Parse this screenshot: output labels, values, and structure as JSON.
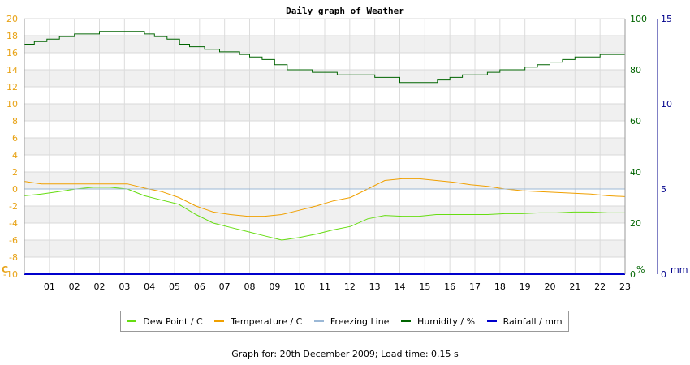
{
  "chart_data": {
    "type": "line",
    "title": "Daily graph of Weather",
    "x_tick_labels": [
      "01",
      "02",
      "02",
      "03",
      "04",
      "05",
      "06",
      "07",
      "08",
      "09",
      "10",
      "11",
      "12",
      "13",
      "14",
      "15",
      "16",
      "17",
      "18",
      "19",
      "20",
      "21",
      "22",
      "23"
    ],
    "axes": {
      "left": {
        "label": "C",
        "ylim": [
          -10,
          20
        ],
        "ticks": [
          20,
          18,
          16,
          14,
          12,
          10,
          8,
          6,
          4,
          2,
          0,
          -2,
          -4,
          -6,
          -8,
          -10
        ],
        "color": "#e8a317"
      },
      "right1": {
        "label": "%",
        "ylim": [
          0,
          100
        ],
        "ticks": [
          100,
          80,
          60,
          40,
          20,
          0
        ],
        "color": "#006400"
      },
      "right2": {
        "label": "mm",
        "ylim": [
          0,
          15
        ],
        "ticks": [
          15,
          10,
          5,
          0
        ],
        "color": "#00008b"
      }
    },
    "x_range_hours": [
      0,
      24
    ],
    "grid": true,
    "series": [
      {
        "name": "Dew Point / C",
        "color": "#66dd11",
        "axis": "left",
        "points": [
          [
            0,
            -0.8
          ],
          [
            1,
            -0.6
          ],
          [
            2,
            -0.3
          ],
          [
            3,
            0
          ],
          [
            4,
            0.2
          ],
          [
            5,
            0.2
          ],
          [
            6,
            0
          ],
          [
            7,
            -0.8
          ],
          [
            8,
            -1.3
          ],
          [
            9,
            -1.8
          ],
          [
            10,
            -3
          ],
          [
            11,
            -4
          ],
          [
            12,
            -4.5
          ],
          [
            13,
            -5
          ],
          [
            14,
            -5.5
          ],
          [
            15,
            -6
          ],
          [
            16,
            -5.7
          ],
          [
            17,
            -5.3
          ],
          [
            18,
            -4.8
          ],
          [
            19,
            -4.4
          ],
          [
            20,
            -3.5
          ],
          [
            21,
            -3.1
          ],
          [
            22,
            -3.2
          ],
          [
            23,
            -3.2
          ],
          [
            24,
            -3
          ],
          [
            25,
            -3
          ],
          [
            26,
            -3
          ],
          [
            27,
            -3
          ],
          [
            28,
            -2.9
          ],
          [
            29,
            -2.9
          ],
          [
            30,
            -2.8
          ],
          [
            31,
            -2.8
          ],
          [
            32,
            -2.7
          ],
          [
            33,
            -2.7
          ],
          [
            34,
            -2.8
          ],
          [
            35,
            -2.8
          ]
        ]
      },
      {
        "name": "Temperature / C",
        "color": "#f0a000",
        "axis": "left",
        "points": [
          [
            0,
            0.9
          ],
          [
            1,
            0.6
          ],
          [
            2,
            0.6
          ],
          [
            3,
            0.6
          ],
          [
            4,
            0.6
          ],
          [
            5,
            0.6
          ],
          [
            6,
            0.6
          ],
          [
            7,
            0.1
          ],
          [
            8,
            -0.3
          ],
          [
            9,
            -1
          ],
          [
            10,
            -2
          ],
          [
            11,
            -2.7
          ],
          [
            12,
            -3
          ],
          [
            13,
            -3.2
          ],
          [
            14,
            -3.2
          ],
          [
            15,
            -3
          ],
          [
            16,
            -2.5
          ],
          [
            17,
            -2
          ],
          [
            18,
            -1.4
          ],
          [
            19,
            -1
          ],
          [
            20,
            0
          ],
          [
            21,
            1
          ],
          [
            22,
            1.2
          ],
          [
            23,
            1.2
          ],
          [
            24,
            1
          ],
          [
            25,
            0.8
          ],
          [
            26,
            0.5
          ],
          [
            27,
            0.3
          ],
          [
            28,
            0
          ],
          [
            29,
            -0.2
          ],
          [
            30,
            -0.3
          ],
          [
            31,
            -0.4
          ],
          [
            32,
            -0.5
          ],
          [
            33,
            -0.6
          ],
          [
            34,
            -0.8
          ],
          [
            35,
            -0.9
          ]
        ]
      },
      {
        "name": "Freezing Line",
        "color": "#9bb8d6",
        "axis": "left",
        "points": [
          [
            0,
            0
          ],
          [
            24,
            0
          ]
        ]
      },
      {
        "name": "Humidity / %",
        "color": "#006400",
        "axis": "right1",
        "points": [
          [
            0,
            90
          ],
          [
            0.4,
            91
          ],
          [
            0.9,
            92
          ],
          [
            1.4,
            93
          ],
          [
            2,
            94
          ],
          [
            3,
            95
          ],
          [
            4,
            95
          ],
          [
            4.8,
            94
          ],
          [
            5.2,
            93
          ],
          [
            5.7,
            92
          ],
          [
            6.2,
            90
          ],
          [
            6.6,
            89
          ],
          [
            7.2,
            88
          ],
          [
            7.8,
            87
          ],
          [
            8.2,
            87
          ],
          [
            8.6,
            86
          ],
          [
            9,
            85
          ],
          [
            9.5,
            84
          ],
          [
            10,
            82
          ],
          [
            10.5,
            80
          ],
          [
            11,
            80
          ],
          [
            11.5,
            79
          ],
          [
            12,
            79
          ],
          [
            12.5,
            78
          ],
          [
            13,
            78
          ],
          [
            14,
            77
          ],
          [
            15,
            75
          ],
          [
            16,
            75
          ],
          [
            16.5,
            76
          ],
          [
            17,
            77
          ],
          [
            17.5,
            78
          ],
          [
            18,
            78
          ],
          [
            18.5,
            79
          ],
          [
            19,
            80
          ],
          [
            19.5,
            80
          ],
          [
            20,
            81
          ],
          [
            20.5,
            82
          ],
          [
            21,
            83
          ],
          [
            21.5,
            84
          ],
          [
            22,
            85
          ],
          [
            22.5,
            85
          ],
          [
            23,
            86
          ],
          [
            24,
            86
          ]
        ]
      },
      {
        "name": "Rainfall / mm",
        "color": "#0000cc",
        "axis": "right2",
        "points": [
          [
            0,
            0
          ],
          [
            24,
            0
          ]
        ]
      }
    ]
  },
  "legend": [
    {
      "label": "Dew Point / C",
      "color": "#66dd11"
    },
    {
      "label": "Temperature / C",
      "color": "#f0a000"
    },
    {
      "label": "Freezing Line",
      "color": "#9bb8d6"
    },
    {
      "label": "Humidity / %",
      "color": "#006400"
    },
    {
      "label": "Rainfall / mm",
      "color": "#0000cc"
    }
  ],
  "footer": "Graph for: 20th December 2009; Load time: 0.15 s"
}
